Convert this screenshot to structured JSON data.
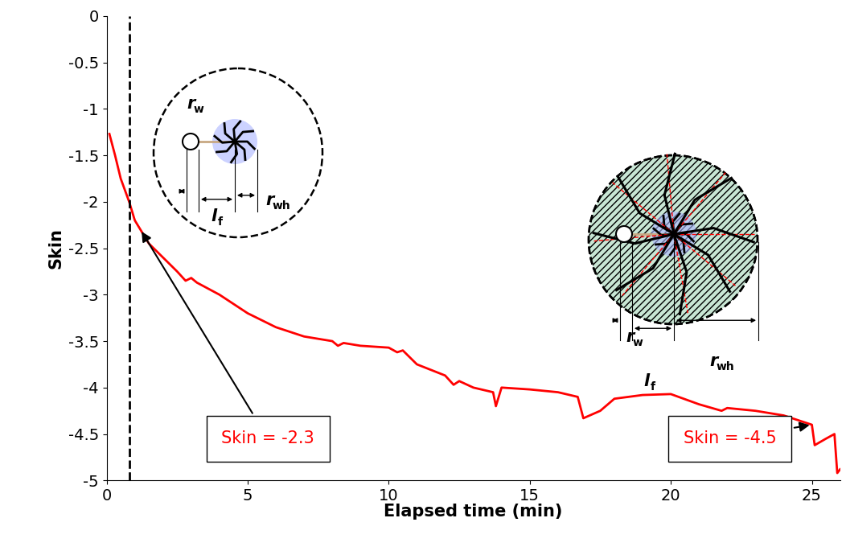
{
  "chart_data": {
    "type": "line",
    "x_label": "Elapsed time (min)",
    "y_label": "Skin",
    "x": [
      0.1,
      0.3,
      0.5,
      0.8,
      1.0,
      1.5,
      2.0,
      2.5,
      2.8,
      3.0,
      3.2,
      4.0,
      5.0,
      6.0,
      7.0,
      8.0,
      8.2,
      8.4,
      9.0,
      10.0,
      10.3,
      10.5,
      11.0,
      12.0,
      12.3,
      12.5,
      13.0,
      13.7,
      13.8,
      14.0,
      15.0,
      16.0,
      16.7,
      16.9,
      17.5,
      18.0,
      19.0,
      20.0,
      21.0,
      21.8,
      22.0,
      23.0,
      24.0,
      24.8,
      25.0,
      25.1,
      25.5,
      25.8,
      25.9,
      26.0
    ],
    "values": [
      -1.27,
      -1.5,
      -1.75,
      -2.0,
      -2.2,
      -2.45,
      -2.6,
      -2.75,
      -2.85,
      -2.82,
      -2.87,
      -3.0,
      -3.2,
      -3.35,
      -3.45,
      -3.5,
      -3.55,
      -3.52,
      -3.55,
      -3.57,
      -3.62,
      -3.6,
      -3.75,
      -3.87,
      -3.97,
      -3.93,
      -4.0,
      -4.05,
      -4.2,
      -4.0,
      -4.02,
      -4.05,
      -4.1,
      -4.33,
      -4.25,
      -4.12,
      -4.08,
      -4.07,
      -4.18,
      -4.25,
      -4.22,
      -4.25,
      -4.3,
      -4.38,
      -4.4,
      -4.62,
      -4.55,
      -4.5,
      -4.92,
      -4.88
    ],
    "color": "#ff0000",
    "xlim": [
      0,
      26
    ],
    "xticks": [
      0,
      5,
      10,
      15,
      20,
      25
    ],
    "ylim": [
      -5,
      0
    ],
    "yticks": [
      0,
      -0.5,
      -1,
      -1.5,
      -2,
      -2.5,
      -3,
      -3.5,
      -4,
      -4.5,
      -5
    ],
    "vline_x": 0.8,
    "annotations": [
      {
        "text": "Skin = -2.3",
        "x": 1.2,
        "y": -2.3
      },
      {
        "text": "Skin = -4.5",
        "x": 25,
        "y": -4.4
      }
    ],
    "schematics": [
      {
        "labels": [
          {
            "text": "r",
            "sub": "w"
          },
          {
            "text": "l",
            "sub": "f"
          },
          {
            "text": "r",
            "sub": "wh"
          }
        ]
      },
      {
        "labels": [
          {
            "text": "r",
            "sub": "w"
          },
          {
            "text": "l",
            "sub": "f"
          },
          {
            "text": "r",
            "sub": "wh"
          }
        ]
      }
    ]
  }
}
